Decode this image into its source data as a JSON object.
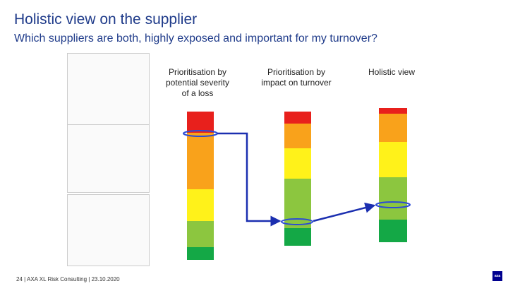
{
  "title": "Holistic view on the supplier",
  "subtitle": "Which suppliers are both, highly exposed and important for my turnover?",
  "columns": [
    {
      "label": "Prioritisation by potential severity of a loss"
    },
    {
      "label": "Prioritisation by impact on turnover"
    },
    {
      "label": "Holistic view"
    }
  ],
  "footer": "24 | AXA XL Risk Consulting | 23.10.2020",
  "logo_text": "axa",
  "colors": {
    "title": "#1f3b8a",
    "red": "#e8201c",
    "orange": "#f9a21b",
    "yellow": "#fff21a",
    "light_green": "#8cc63f",
    "green": "#14a846",
    "highlight": "#2c4cd4",
    "arrow": "#1b2fb0"
  }
}
